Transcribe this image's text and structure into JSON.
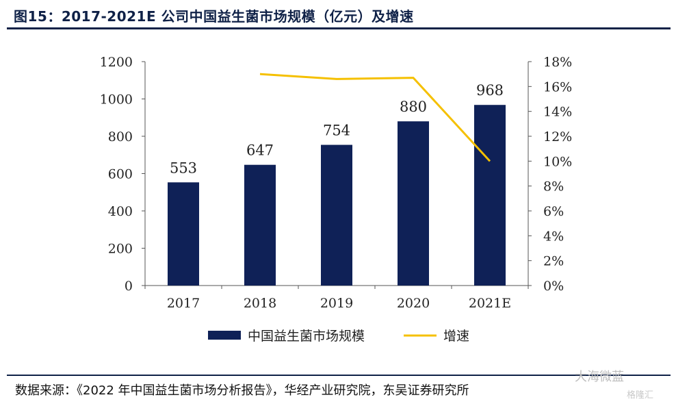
{
  "title": "图15：2017-2021E 公司中国益生菌市场规模（亿元）及增速",
  "source": "数据来源：《2022 年中国益生菌市场分析报告》，华经产业研究院，东吴证券研究所",
  "watermark": "大海微蓝",
  "watermark2": "格隆汇",
  "colors": {
    "bar": "#0f2157",
    "line": "#f5c000",
    "rule": "#0f2147"
  },
  "chart_data": {
    "type": "bar+line",
    "categories": [
      "2017",
      "2018",
      "2019",
      "2020",
      "2021E"
    ],
    "series": [
      {
        "name": "中国益生菌市场规模",
        "type": "bar",
        "axis": "left",
        "values": [
          553,
          647,
          754,
          880,
          968
        ],
        "labels": [
          "553",
          "647",
          "754",
          "880",
          "968"
        ]
      },
      {
        "name": "增速",
        "type": "line",
        "axis": "right",
        "values": [
          null,
          17.0,
          16.6,
          16.7,
          10.0
        ]
      }
    ],
    "y_left": {
      "ylim": [
        0,
        1200
      ],
      "ticks": [
        "0",
        "200",
        "400",
        "600",
        "800",
        "1000",
        "1200"
      ]
    },
    "y_right": {
      "ylim": [
        0,
        18
      ],
      "ticks": [
        "0%",
        "2%",
        "4%",
        "6%",
        "8%",
        "10%",
        "12%",
        "14%",
        "16%",
        "18%"
      ]
    },
    "legend": {
      "position": "bottom",
      "items": [
        "中国益生菌市场规模",
        "增速"
      ]
    },
    "grid": false
  }
}
